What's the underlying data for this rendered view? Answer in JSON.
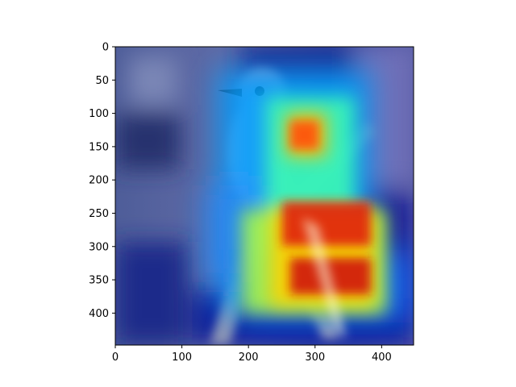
{
  "figure": {
    "image_subject": "bird-perched-on-branch",
    "overlay": "attention-heatmap",
    "colormap": "jet",
    "colors": {
      "background": "#ffffff",
      "axis": "#000000",
      "photo_tint": "#3c4a9a",
      "heat_low": "#000080",
      "heat_mid": "#00ffff",
      "heat_high": "#ff0000"
    }
  },
  "axes": {
    "xlim": [
      0,
      448
    ],
    "ylim": [
      448,
      0
    ],
    "x_ticks": [
      "0",
      "100",
      "200",
      "300",
      "400"
    ],
    "x_tick_values": [
      0,
      100,
      200,
      300,
      400
    ],
    "y_ticks": [
      "0",
      "50",
      "100",
      "150",
      "200",
      "250",
      "300",
      "350",
      "400"
    ],
    "y_tick_values": [
      0,
      50,
      100,
      150,
      200,
      250,
      300,
      350,
      400
    ]
  }
}
